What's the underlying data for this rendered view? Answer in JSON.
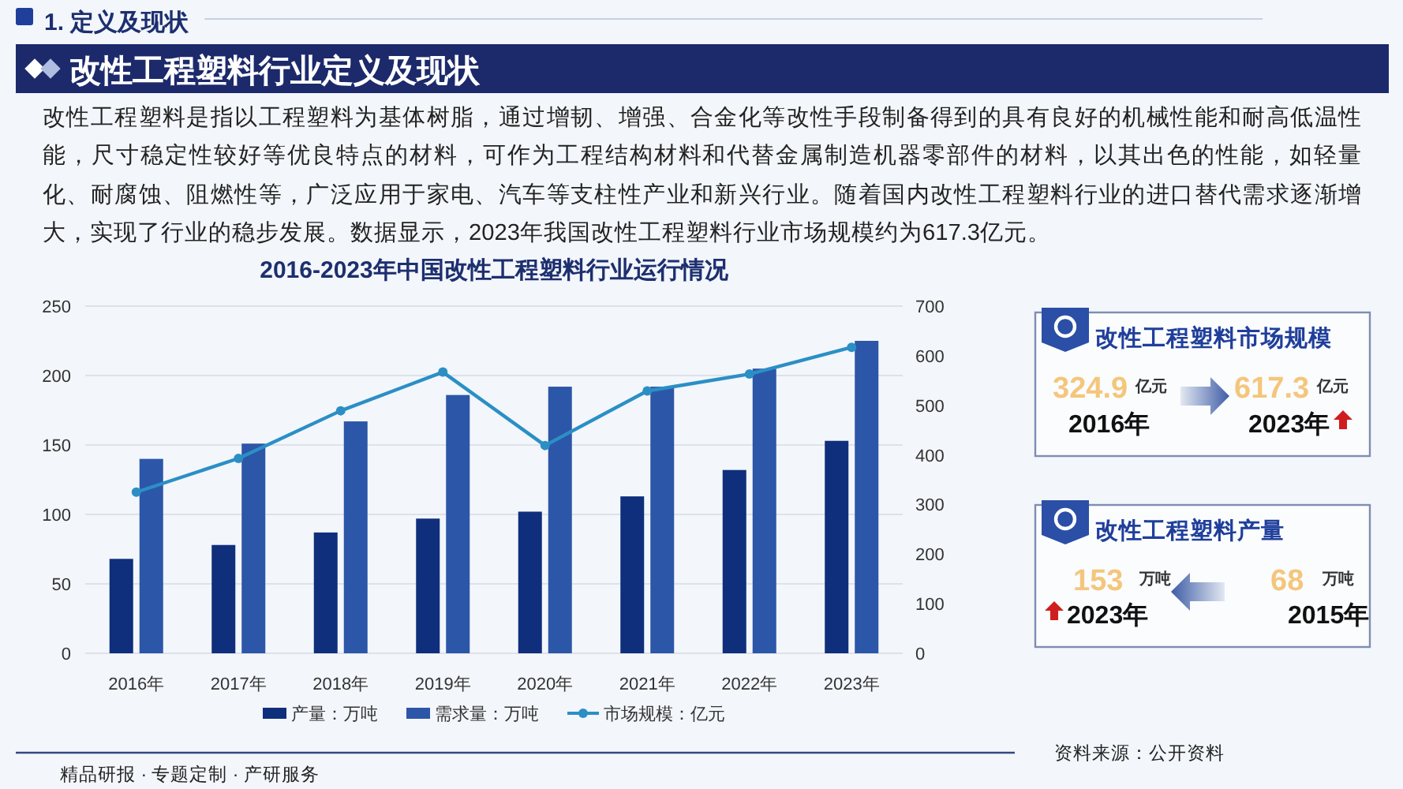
{
  "chart_data": [
    {
      "type": "other",
      "title": "1. 定义及现状",
      "subtitle": "改性工程塑料行业定义及现状",
      "annotations": [
        "改性工程塑料是指以工程塑料为基体树脂，通过增韧、增强、合金化等改性手段制备得到的具有良好的机械性能和耐高低温性能，尺寸稳定性较好等优良特点的材料，可作为工程结构材料和代替金属制造机器零部件的材料，以其出色的性能，如轻量化、耐腐蚀、阻燃性等，广泛应用于家电、汽车等支柱性产业和新兴行业。随着国内改性工程塑料行业的进口替代需求逐渐增大，实现了行业的稳步发展。数据显示，2023年我国改性工程塑料行业市场规模约为617.3亿元。",
        "精品研报 · 专题定制 · 产研服务"
      ]
    },
    {
      "type": "bar",
      "title": "2016-2023年中国改性工程塑料行业运行情况",
      "categories": [
        "2016年",
        "2017年",
        "2018年",
        "2019年",
        "2020年",
        "2021年",
        "2022年",
        "2023年"
      ],
      "series": [
        {
          "name": "产量：万吨",
          "color": "#0f2f7c",
          "values": [
            68,
            78,
            87,
            97,
            102,
            113,
            132,
            153
          ]
        },
        {
          "name": "需求量：万吨",
          "color": "#2c56a8",
          "values": [
            140,
            151,
            167,
            186,
            192,
            192,
            205,
            225
          ]
        },
        {
          "name": "市场规模：亿元",
          "type": "line",
          "axis": "y2",
          "color": "#2b8fc6",
          "values": [
            325,
            393,
            489,
            567,
            419,
            529,
            563,
            617
          ]
        }
      ],
      "ylim": [
        0,
        250
      ],
      "yticks": [
        0,
        50,
        100,
        150,
        200,
        250
      ],
      "y2lim": [
        0,
        700
      ],
      "y2ticks": [
        0,
        100,
        200,
        300,
        400,
        500,
        600,
        700
      ],
      "grid": "y",
      "legend": "bottom",
      "marker": "circle",
      "line_style": "solid",
      "annotations": [
        "资料来源：公开资料"
      ]
    },
    {
      "type": "other",
      "title": "改性工程塑料市场规模",
      "annotations": [
        "324.9",
        "亿元",
        "2016年",
        "617.3",
        "亿元",
        "2023年"
      ]
    },
    {
      "type": "other",
      "title": "改性工程塑料产量",
      "annotations": [
        "153",
        "万吨",
        "2023年",
        "68",
        "万吨",
        "2015年"
      ]
    }
  ]
}
